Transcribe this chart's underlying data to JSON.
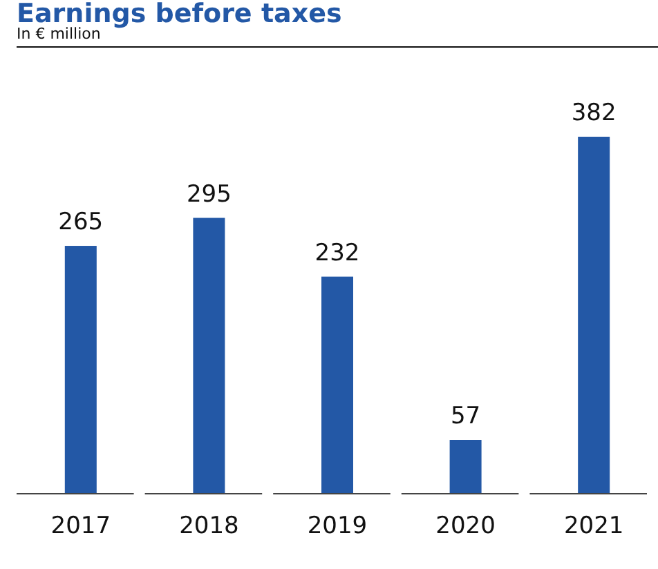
{
  "chart_data": {
    "type": "bar",
    "title": "Earnings before taxes",
    "subtitle": "In € million",
    "categories": [
      "2017",
      "2018",
      "2019",
      "2020",
      "2021"
    ],
    "values": [
      265,
      295,
      232,
      57,
      382
    ],
    "color": "#2358a6",
    "data_labels": true
  }
}
